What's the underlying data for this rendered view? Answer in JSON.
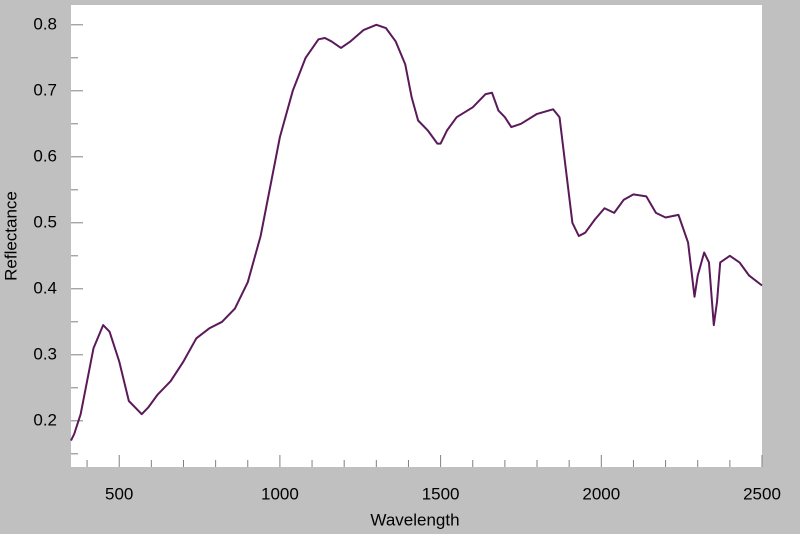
{
  "chart_data": {
    "type": "line",
    "x_label": "Wavelength",
    "y_label": "Reflectance",
    "xlim": [
      350,
      2500
    ],
    "ylim": [
      0.13,
      0.83
    ],
    "xticks": [
      500,
      1000,
      1500,
      2000,
      2500
    ],
    "yticks": [
      0.2,
      0.3,
      0.4,
      0.5,
      0.6,
      0.7,
      0.8
    ],
    "xminorticks": [
      400,
      600,
      700,
      800,
      900,
      1100,
      1200,
      1300,
      1400,
      1600,
      1700,
      1800,
      1900,
      2100,
      2200,
      2300,
      2400
    ],
    "yminorticks": [
      0.15,
      0.25,
      0.35,
      0.45,
      0.55,
      0.65,
      0.75
    ],
    "series": [
      {
        "color": "#5a1a5a",
        "x": [
          350,
          360,
          380,
          400,
          420,
          450,
          470,
          500,
          530,
          550,
          570,
          590,
          620,
          660,
          700,
          740,
          780,
          820,
          860,
          900,
          940,
          980,
          1000,
          1040,
          1080,
          1120,
          1140,
          1160,
          1190,
          1220,
          1260,
          1300,
          1330,
          1360,
          1390,
          1410,
          1430,
          1460,
          1490,
          1500,
          1520,
          1550,
          1600,
          1640,
          1660,
          1680,
          1700,
          1720,
          1750,
          1800,
          1850,
          1870,
          1890,
          1910,
          1930,
          1950,
          1980,
          2010,
          2040,
          2070,
          2100,
          2140,
          2170,
          2200,
          2240,
          2270,
          2290,
          2300,
          2320,
          2335,
          2350,
          2360,
          2370,
          2400,
          2430,
          2460,
          2500
        ],
        "values": [
          0.17,
          0.18,
          0.21,
          0.26,
          0.31,
          0.345,
          0.335,
          0.29,
          0.23,
          0.22,
          0.21,
          0.22,
          0.24,
          0.26,
          0.29,
          0.325,
          0.34,
          0.35,
          0.37,
          0.41,
          0.48,
          0.58,
          0.63,
          0.7,
          0.75,
          0.778,
          0.78,
          0.775,
          0.765,
          0.775,
          0.792,
          0.8,
          0.795,
          0.775,
          0.74,
          0.69,
          0.655,
          0.64,
          0.62,
          0.62,
          0.64,
          0.66,
          0.675,
          0.695,
          0.697,
          0.67,
          0.66,
          0.645,
          0.65,
          0.665,
          0.672,
          0.66,
          0.58,
          0.5,
          0.48,
          0.485,
          0.505,
          0.522,
          0.515,
          0.535,
          0.543,
          0.54,
          0.515,
          0.508,
          0.512,
          0.47,
          0.388,
          0.42,
          0.455,
          0.44,
          0.345,
          0.38,
          0.44,
          0.45,
          0.44,
          0.42,
          0.405
        ]
      }
    ]
  }
}
